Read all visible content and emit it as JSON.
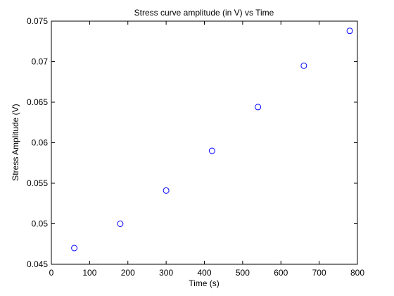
{
  "chart_data": {
    "type": "scatter",
    "title": "Stress curve amplitude (in V) vs Time",
    "xlabel": "Time (s)",
    "ylabel": "Stress Amplitude (V)",
    "xlim": [
      0,
      800
    ],
    "ylim": [
      0.045,
      0.075
    ],
    "xticks": [
      0,
      100,
      200,
      300,
      400,
      500,
      600,
      700,
      800
    ],
    "yticks": [
      0.045,
      0.05,
      0.055,
      0.06,
      0.065,
      0.07,
      0.075
    ],
    "xtick_labels": [
      "0",
      "100",
      "200",
      "300",
      "400",
      "500",
      "600",
      "700",
      "800"
    ],
    "ytick_labels": [
      "0.045",
      "0.05",
      "0.055",
      "0.06",
      "0.065",
      "0.07",
      "0.075"
    ],
    "grid": false,
    "marker": "circle-open",
    "marker_color": "#0000ff",
    "axis_color": "#000000",
    "series": [
      {
        "x": [
          60,
          180,
          300,
          420,
          540,
          660,
          780
        ],
        "y": [
          0.047,
          0.05,
          0.0541,
          0.059,
          0.0644,
          0.0695,
          0.0738
        ]
      }
    ]
  }
}
